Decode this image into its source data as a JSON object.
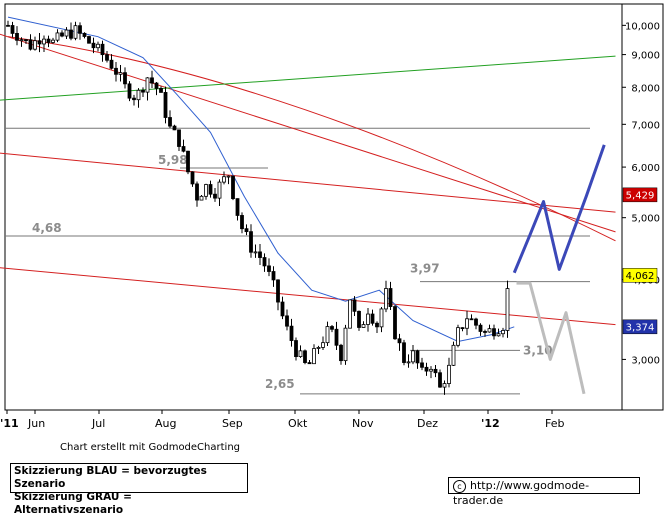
{
  "chart_data": {
    "type": "candlestick",
    "title": "",
    "xlabel": "",
    "ylabel": "",
    "y_scale": "log",
    "ylim": [
      2.5,
      10.8
    ],
    "grid": false,
    "x_labels": [
      "'11",
      "Jun",
      "Jul",
      "Aug",
      "Sep",
      "Okt",
      "Nov",
      "Dez",
      "'12",
      "Feb"
    ],
    "y_tick_labels": [
      "10,000",
      "9,000",
      "8,000",
      "7,000",
      "6,000",
      "5,000",
      "4,000",
      "3,000"
    ],
    "y_tick_values": [
      10,
      9,
      8,
      7,
      6,
      5,
      4,
      3
    ],
    "price_anchors": [
      {
        "d": 0,
        "p": 10.0
      },
      {
        "d": 5,
        "p": 9.6
      },
      {
        "d": 10,
        "p": 9.3
      },
      {
        "d": 16,
        "p": 9.7
      },
      {
        "d": 20,
        "p": 9.4
      },
      {
        "d": 26,
        "p": 9.7
      },
      {
        "d": 30,
        "p": 9.8
      },
      {
        "d": 36,
        "p": 9.4
      },
      {
        "d": 42,
        "p": 9.0
      },
      {
        "d": 47,
        "p": 8.6
      },
      {
        "d": 52,
        "p": 8.0
      },
      {
        "d": 57,
        "p": 7.7
      },
      {
        "d": 62,
        "p": 8.3
      },
      {
        "d": 67,
        "p": 7.9
      },
      {
        "d": 72,
        "p": 6.9
      },
      {
        "d": 76,
        "p": 6.6
      },
      {
        "d": 80,
        "p": 5.9
      },
      {
        "d": 84,
        "p": 5.4
      },
      {
        "d": 88,
        "p": 5.6
      },
      {
        "d": 92,
        "p": 5.5
      },
      {
        "d": 98,
        "p": 5.85
      },
      {
        "d": 103,
        "p": 4.9
      },
      {
        "d": 108,
        "p": 4.5
      },
      {
        "d": 113,
        "p": 4.3
      },
      {
        "d": 118,
        "p": 3.9
      },
      {
        "d": 123,
        "p": 3.4
      },
      {
        "d": 128,
        "p": 3.1
      },
      {
        "d": 133,
        "p": 2.9
      },
      {
        "d": 138,
        "p": 3.15
      },
      {
        "d": 143,
        "p": 3.35
      },
      {
        "d": 148,
        "p": 3.05
      },
      {
        "d": 152,
        "p": 3.75
      },
      {
        "d": 156,
        "p": 3.3
      },
      {
        "d": 160,
        "p": 3.6
      },
      {
        "d": 164,
        "p": 3.4
      },
      {
        "d": 168,
        "p": 3.8
      },
      {
        "d": 172,
        "p": 3.3
      },
      {
        "d": 176,
        "p": 3.0
      },
      {
        "d": 180,
        "p": 3.05
      },
      {
        "d": 184,
        "p": 2.85
      },
      {
        "d": 188,
        "p": 2.95
      },
      {
        "d": 192,
        "p": 2.7
      },
      {
        "d": 196,
        "p": 2.9
      },
      {
        "d": 200,
        "p": 3.3
      },
      {
        "d": 204,
        "p": 3.5
      },
      {
        "d": 208,
        "p": 3.4
      },
      {
        "d": 212,
        "p": 3.3
      },
      {
        "d": 216,
        "p": 3.35
      },
      {
        "d": 220,
        "p": 3.4
      },
      {
        "d": 223,
        "p": 4.06
      }
    ],
    "moving_average": [
      {
        "d": 0,
        "p": 10.3
      },
      {
        "d": 40,
        "p": 9.6
      },
      {
        "d": 60,
        "p": 8.9
      },
      {
        "d": 75,
        "p": 7.8
      },
      {
        "d": 90,
        "p": 6.8
      },
      {
        "d": 105,
        "p": 5.4
      },
      {
        "d": 120,
        "p": 4.4
      },
      {
        "d": 135,
        "p": 3.85
      },
      {
        "d": 150,
        "p": 3.7
      },
      {
        "d": 165,
        "p": 3.85
      },
      {
        "d": 180,
        "p": 3.45
      },
      {
        "d": 200,
        "p": 3.2
      },
      {
        "d": 215,
        "p": 3.28
      },
      {
        "d": 225,
        "p": 3.374
      }
    ],
    "trendlines": [
      {
        "name": "long-downtrend",
        "color": "#d42020",
        "from": {
          "d": -12,
          "p": 9.9
        },
        "to": {
          "d": 270,
          "p": 4.75
        }
      },
      {
        "name": "channel-upper",
        "color": "#d42020",
        "from": {
          "d": -12,
          "p": 6.35
        },
        "to": {
          "d": 270,
          "p": 5.1
        }
      },
      {
        "name": "channel-lower",
        "color": "#d42020",
        "from": {
          "d": -12,
          "p": 4.2
        },
        "to": {
          "d": 270,
          "p": 3.4
        }
      },
      {
        "name": "resistance-curve",
        "color": "#d42020",
        "from": {
          "d": 0,
          "p": 9.6
        },
        "via": {
          "d": 120,
          "p": 8.4
        },
        "to": {
          "d": 270,
          "p": 4.6
        }
      },
      {
        "name": "long-uptrend",
        "color": "#22a022",
        "from": {
          "d": -12,
          "p": 7.6
        },
        "to": {
          "d": 270,
          "p": 8.95
        }
      }
    ],
    "horizontal_levels": [
      {
        "value": 6.9,
        "label": ""
      },
      {
        "value": 5.98,
        "label": "5,98"
      },
      {
        "value": 4.68,
        "label": "4,68"
      },
      {
        "value": 3.97,
        "label": "3,97"
      },
      {
        "value": 3.1,
        "label": "3,10"
      },
      {
        "value": 2.65,
        "label": "2,65"
      }
    ],
    "scenarios": [
      {
        "name": "Skizzierung BLAU",
        "color": "#3b48b8",
        "points": [
          {
            "d": 225,
            "p": 4.1
          },
          {
            "d": 232,
            "p": 4.7
          },
          {
            "d": 238,
            "p": 5.3
          },
          {
            "d": 245,
            "p": 4.15
          },
          {
            "d": 257,
            "p": 5.4
          },
          {
            "d": 265,
            "p": 6.5
          }
        ]
      },
      {
        "name": "Skizzierung GRAU",
        "color": "#bdbdbd",
        "points": [
          {
            "d": 226,
            "p": 3.95
          },
          {
            "d": 232,
            "p": 3.95
          },
          {
            "d": 241,
            "p": 3.0
          },
          {
            "d": 248,
            "p": 3.55
          },
          {
            "d": 256,
            "p": 2.65
          }
        ]
      }
    ],
    "price_badges": [
      {
        "label": "5,429",
        "value": 5.429,
        "bg": "#cc0000",
        "fg": "#ffffff"
      },
      {
        "label": "4,062",
        "value": 4.062,
        "bg": "#ffff00",
        "fg": "#000000"
      },
      {
        "label": "3,374",
        "value": 3.374,
        "bg": "#2233aa",
        "fg": "#ffffff"
      }
    ]
  },
  "credit": "Chart erstellt mit GodmodeCharting",
  "legend": {
    "line1": "Skizzierung BLAU = bevorzugtes Szenario",
    "line2": "Skizzierung GRAU = Alternativszenario"
  },
  "url_box": {
    "copyright_icon": "copyright-icon",
    "text": "http://www.godmode-trader.de"
  }
}
